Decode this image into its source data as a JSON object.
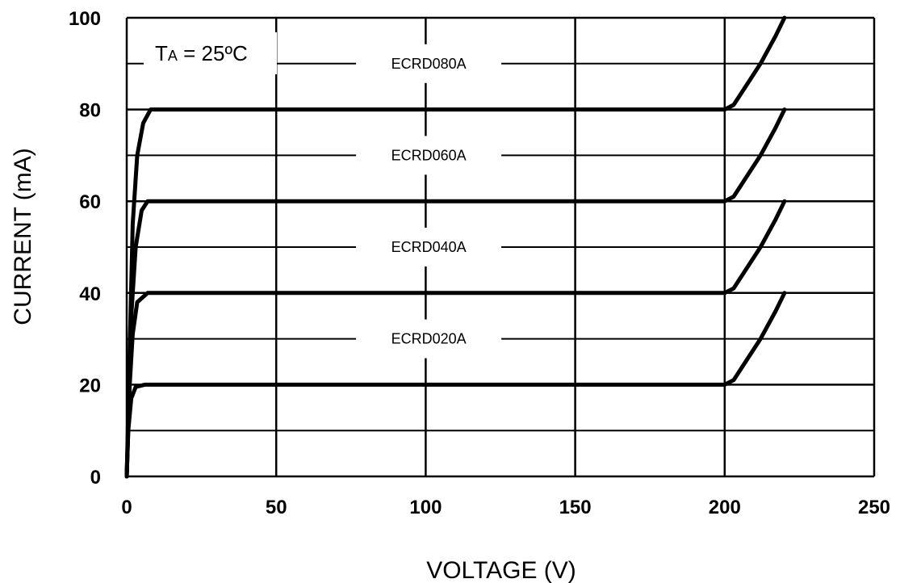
{
  "chart_data": {
    "type": "line",
    "title": "",
    "xlabel": "VOLTAGE (V)",
    "ylabel": "CURRENT (mA)",
    "xlim": [
      0,
      250
    ],
    "ylim": [
      0,
      100
    ],
    "x_ticks": [
      0,
      50,
      100,
      150,
      200,
      250
    ],
    "y_ticks": [
      0,
      20,
      40,
      60,
      80,
      100
    ],
    "y_minor_gridlines": [
      10,
      30,
      50,
      70,
      90
    ],
    "grid": true,
    "annotation": {
      "T": "T",
      "A": "A",
      "rest": " = 25ºC"
    },
    "series": [
      {
        "name": "ECRD020A",
        "label_y": 30,
        "x": [
          0,
          0.5,
          1.5,
          3,
          6,
          200,
          203,
          207,
          212,
          217,
          220
        ],
        "y": [
          0,
          10,
          17,
          19.5,
          20,
          20,
          21,
          25,
          30,
          36,
          40
        ]
      },
      {
        "name": "ECRD040A",
        "label_y": 50,
        "x": [
          0,
          1,
          2,
          3.5,
          7,
          200,
          203,
          207,
          212,
          217,
          220
        ],
        "y": [
          0,
          20,
          31,
          38,
          40,
          40,
          41,
          45,
          50,
          56,
          60
        ]
      },
      {
        "name": "ECRD060A",
        "label_y": 70,
        "x": [
          0,
          1.5,
          3,
          5,
          7,
          200,
          203,
          207,
          212,
          217,
          220
        ],
        "y": [
          0,
          35,
          50,
          58,
          60,
          60,
          61,
          65,
          70,
          76,
          80
        ]
      },
      {
        "name": "ECRD080A",
        "label_y": 90,
        "x": [
          0,
          2,
          3.5,
          5.5,
          8,
          200,
          203,
          207,
          212,
          217,
          220
        ],
        "y": [
          0,
          55,
          70,
          77,
          80,
          80,
          81,
          85,
          90,
          96,
          100
        ]
      }
    ]
  }
}
